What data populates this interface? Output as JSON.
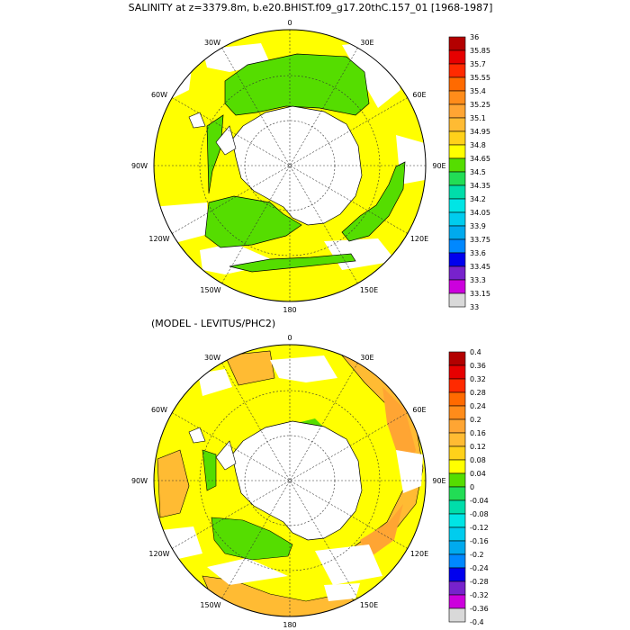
{
  "title": "SALINITY at z=3379.8m, b.e20.BHIST.f09_g17.20thC.157_01 [1968-1987]",
  "subtitle": "(MODEL - LEVITUS/PHC2)",
  "top_map": {
    "lon_labels": {
      "0": "0",
      "30E": "30E",
      "60E": "60E",
      "90E": "90E",
      "120E": "120E",
      "150E": "150E",
      "180": "180",
      "150W": "150W",
      "120W": "120W",
      "90W": "90W",
      "60W": "60W",
      "30W": "30W"
    },
    "colorbar_labels": [
      "36",
      "35.85",
      "35.7",
      "35.55",
      "35.4",
      "35.25",
      "35.1",
      "34.95",
      "34.8",
      "34.65",
      "34.5",
      "34.35",
      "34.2",
      "34.05",
      "33.9",
      "33.75",
      "33.6",
      "33.45",
      "33.3",
      "33.15",
      "33"
    ],
    "colors": [
      "#b30000",
      "#e60000",
      "#ff2a00",
      "#ff6a00",
      "#ff8c1a",
      "#ffa533",
      "#ffbb33",
      "#ffd11a",
      "#ffff00",
      "#55dd00",
      "#22dd55",
      "#00ddaa",
      "#00e5e5",
      "#00ccee",
      "#00aaee",
      "#0088ff",
      "#0000ee",
      "#7722cc",
      "#cc00dd",
      "#d9d9d9",
      "#6e6e6e"
    ]
  },
  "bottom_map": {
    "lon_labels": {
      "0": "0",
      "30E": "30E",
      "60E": "60E",
      "90E": "90E",
      "120E": "120E",
      "150E": "150E",
      "180": "180",
      "150W": "150W",
      "120W": "120W",
      "90W": "90W",
      "60W": "60W",
      "30W": "30W"
    },
    "colorbar_labels": [
      "0.4",
      "0.36",
      "0.32",
      "0.28",
      "0.24",
      "0.2",
      "0.16",
      "0.12",
      "0.08",
      "0.04",
      "0",
      "-0.04",
      "-0.08",
      "-0.12",
      "-0.16",
      "-0.2",
      "-0.24",
      "-0.28",
      "-0.32",
      "-0.36",
      "-0.4"
    ],
    "colors": [
      "#b30000",
      "#e60000",
      "#ff2a00",
      "#ff6a00",
      "#ff8c1a",
      "#ffa533",
      "#ffbb33",
      "#ffd11a",
      "#ffff00",
      "#55dd00",
      "#22dd55",
      "#00ddaa",
      "#00e5e5",
      "#00ccee",
      "#00aaee",
      "#0088ff",
      "#0000ee",
      "#7722cc",
      "#cc00dd",
      "#d9d9d9",
      "#6e6e6e"
    ]
  }
}
